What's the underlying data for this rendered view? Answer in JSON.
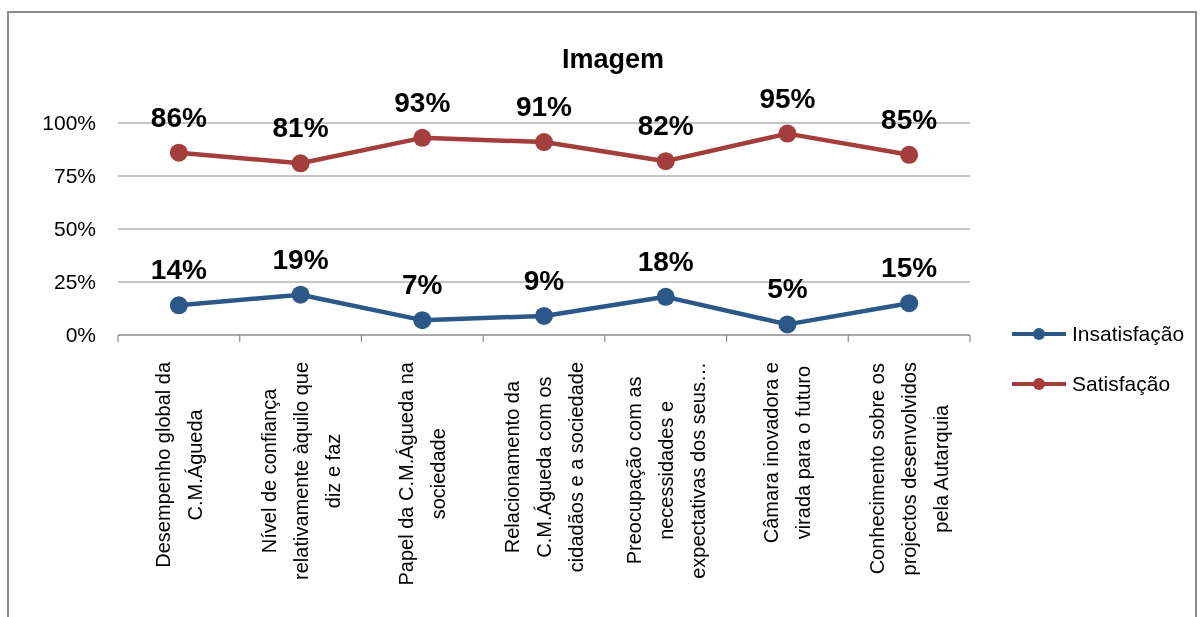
{
  "chart_data": {
    "type": "line",
    "title": "Imagem",
    "categories": [
      "Desempenho global da C.M.Águeda",
      "Nível de confiança relativamente àquilo que diz e faz",
      "Papel da C.M.Águeda na sociedade",
      "Relacionamento da C.M.Águeda com os cidadãos e a sociedade",
      "Preocupação com as necessidades e expectativas dos seus…",
      "Câmara inovadora e virada para o futuro",
      "Conhecimento sobre os projectos desenvolvidos pela Autarquia"
    ],
    "series": [
      {
        "name": "Insatisfação",
        "color": "#2b5889",
        "values": [
          14,
          19,
          7,
          9,
          18,
          5,
          15
        ],
        "value_labels": [
          "14%",
          "19%",
          "7%",
          "9%",
          "18%",
          "5%",
          "15%"
        ]
      },
      {
        "name": "Satisfação",
        "color": "#a43e3c",
        "values": [
          86,
          81,
          93,
          91,
          82,
          95,
          85
        ],
        "value_labels": [
          "86%",
          "81%",
          "93%",
          "91%",
          "82%",
          "95%",
          "85%"
        ]
      }
    ],
    "ylim": [
      0,
      100
    ],
    "yticks": [
      {
        "value": 0,
        "label": "0%"
      },
      {
        "value": 25,
        "label": "25%"
      },
      {
        "value": 50,
        "label": "50%"
      },
      {
        "value": 75,
        "label": "75%"
      },
      {
        "value": 100,
        "label": "100%"
      }
    ],
    "grid": "y",
    "legend": "right",
    "marker": "circle",
    "line_style": "solid"
  }
}
